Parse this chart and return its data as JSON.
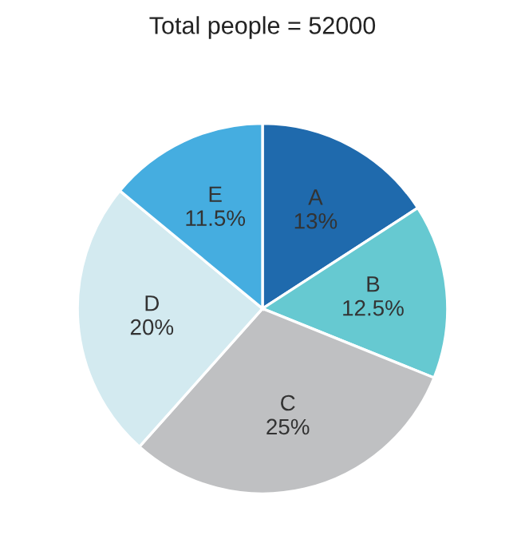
{
  "chart_data": {
    "type": "pie",
    "title": "Total people = 52000",
    "categories": [
      "A",
      "B",
      "C",
      "D",
      "E"
    ],
    "values": [
      13,
      12.5,
      25,
      20,
      11.5
    ],
    "value_labels": [
      "13%",
      "12.5%",
      "25%",
      "20%",
      "11.5%"
    ],
    "colors": [
      "#1f6aad",
      "#66c9d1",
      "#bfc0c2",
      "#d3eaf0",
      "#45ade0"
    ]
  }
}
